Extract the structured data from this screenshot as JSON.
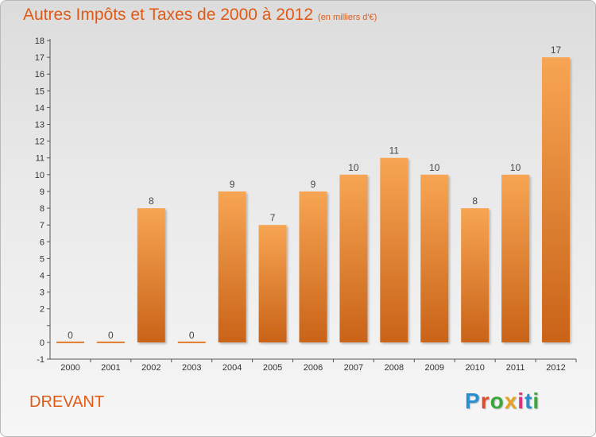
{
  "header": {
    "title": "Autres Impôts et Taxes de 2000 à 2012",
    "subtitle": "(en milliers d'€)"
  },
  "footer": {
    "commune": "DREVANT"
  },
  "logo": {
    "text": "Proxiti",
    "letter_colors": [
      "#2a8fd0",
      "#e14b2b",
      "#3aa83a",
      "#e3a21f",
      "#d9337d",
      "#2a8fd0",
      "#3aa83a"
    ]
  },
  "colors": {
    "bar_top": "#f7a553",
    "bar_bottom": "#c96318",
    "text": "#e05a16"
  },
  "chart_data": {
    "type": "bar",
    "title": "Autres Impôts et Taxes de 2000 à 2012",
    "subtitle": "(en milliers d'€)",
    "categories": [
      "2000",
      "2001",
      "2002",
      "2003",
      "2004",
      "2005",
      "2006",
      "2007",
      "2008",
      "2009",
      "2010",
      "2011",
      "2012"
    ],
    "values": [
      0,
      0,
      8,
      0,
      9,
      7,
      9,
      10,
      11,
      10,
      8,
      10,
      17
    ],
    "data_labels": [
      "0",
      "0",
      "8",
      "0",
      "9",
      "7",
      "9",
      "10",
      "11",
      "10",
      "8",
      "10",
      "17"
    ],
    "ylim": [
      -1,
      18
    ],
    "yticks": [
      -1,
      0,
      1,
      2,
      3,
      4,
      5,
      6,
      7,
      8,
      9,
      10,
      11,
      12,
      13,
      14,
      15,
      16,
      17,
      18
    ],
    "ytick_labels": [
      "-1",
      "0",
      "",
      "2",
      "3",
      "4",
      "5",
      "6",
      "7",
      "8",
      "9",
      "10",
      "11",
      "12",
      "13",
      "14",
      "15",
      "16",
      "17",
      "18"
    ],
    "grid": false,
    "legend": "none"
  }
}
